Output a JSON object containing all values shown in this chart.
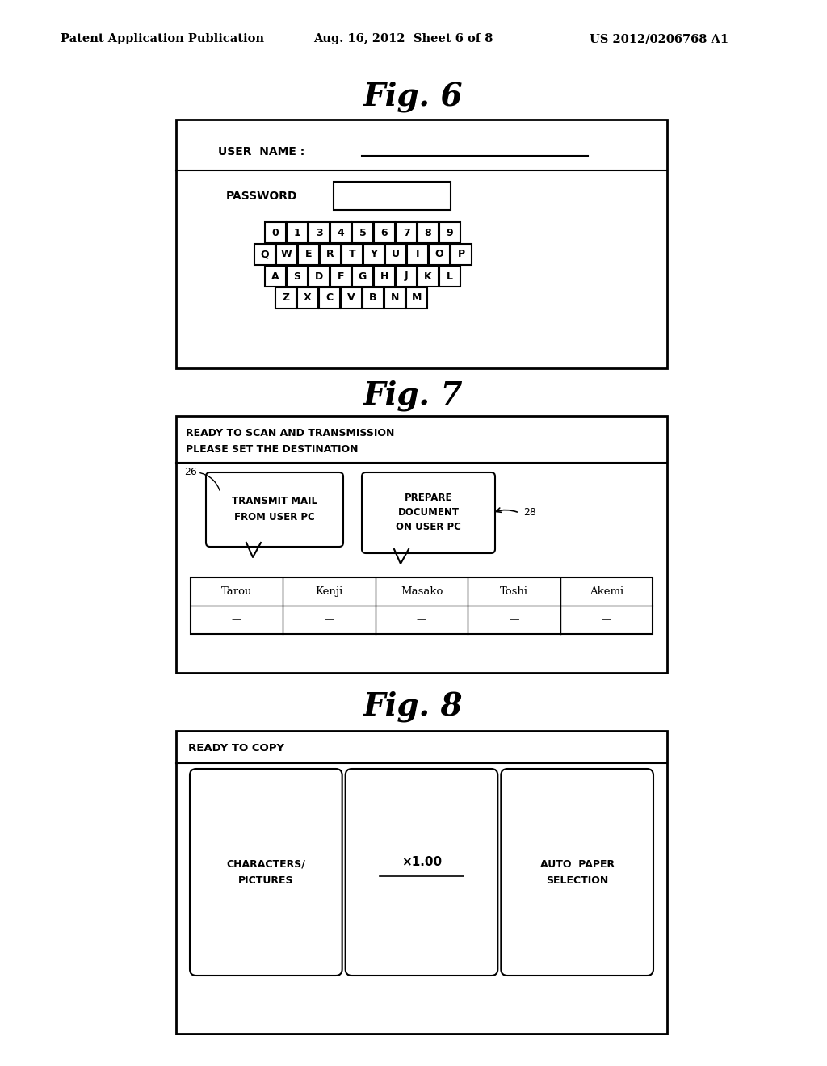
{
  "header_left": "Patent Application Publication",
  "header_mid": "Aug. 16, 2012  Sheet 6 of 8",
  "header_right": "US 2012/0206768 A1",
  "fig6_title": "Fig. 6",
  "fig7_title": "Fig. 7",
  "fig8_title": "Fig. 8",
  "fig6_user_name": "USER  NAME :",
  "fig6_password": "PASSWORD",
  "fig6_row1": [
    "0",
    "1",
    "3",
    "4",
    "5",
    "6",
    "7",
    "8",
    "9"
  ],
  "fig6_row2": [
    "Q",
    "W",
    "E",
    "R",
    "T",
    "Y",
    "U",
    "I",
    "O",
    "P"
  ],
  "fig6_row3": [
    "A",
    "S",
    "D",
    "F",
    "G",
    "H",
    "J",
    "K",
    "L"
  ],
  "fig6_row4": [
    "Z",
    "X",
    "C",
    "V",
    "B",
    "N",
    "M"
  ],
  "fig7_status1": "READY TO SCAN AND TRANSMISSION",
  "fig7_status2": "PLEASE SET THE DESTINATION",
  "fig7_label26": "26",
  "fig7_btn1_line1": "TRANSMIT MAIL",
  "fig7_btn1_line2": "FROM USER PC",
  "fig7_btn2_line1": "PREPARE",
  "fig7_btn2_line2": "DOCUMENT",
  "fig7_btn2_line3": "ON USER PC",
  "fig7_label28": "28",
  "fig7_names": [
    "Tarou",
    "Kenji",
    "Masako",
    "Toshi",
    "Akemi"
  ],
  "fig7_dashes": [
    "—",
    "—",
    "—",
    "—",
    "—"
  ],
  "fig8_status": "READY TO COPY",
  "fig8_btn1_line1": "CHARACTERS/",
  "fig8_btn1_line2": "PICTURES",
  "fig8_btn2_text": "×1.00",
  "fig8_btn3_line1": "AUTO  PAPER",
  "fig8_btn3_line2": "SELECTION",
  "bg_color": "#ffffff",
  "border_color": "#000000"
}
